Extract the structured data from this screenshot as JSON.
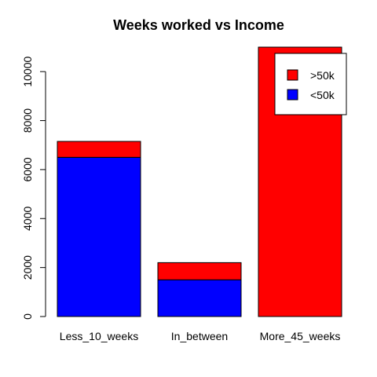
{
  "chart_data": {
    "type": "bar",
    "stacked": true,
    "title": "Weeks worked vs Income",
    "xlabel": "",
    "ylabel": "",
    "categories": [
      "Less_10_weeks",
      "In_between",
      "More_45_weeks"
    ],
    "series": [
      {
        "name": "<50k",
        "color": "#0000ff",
        "values": [
          6500,
          1500,
          0
        ]
      },
      {
        "name": ">50k",
        "color": "#ff0000",
        "values": [
          650,
          700,
          11000
        ]
      }
    ],
    "ylim": [
      0,
      11000
    ],
    "yticks": [
      0,
      2000,
      4000,
      6000,
      8000,
      10000
    ],
    "grid": false,
    "legend": {
      "position": "top-right",
      "order": [
        ">50k",
        "<50k"
      ]
    }
  }
}
